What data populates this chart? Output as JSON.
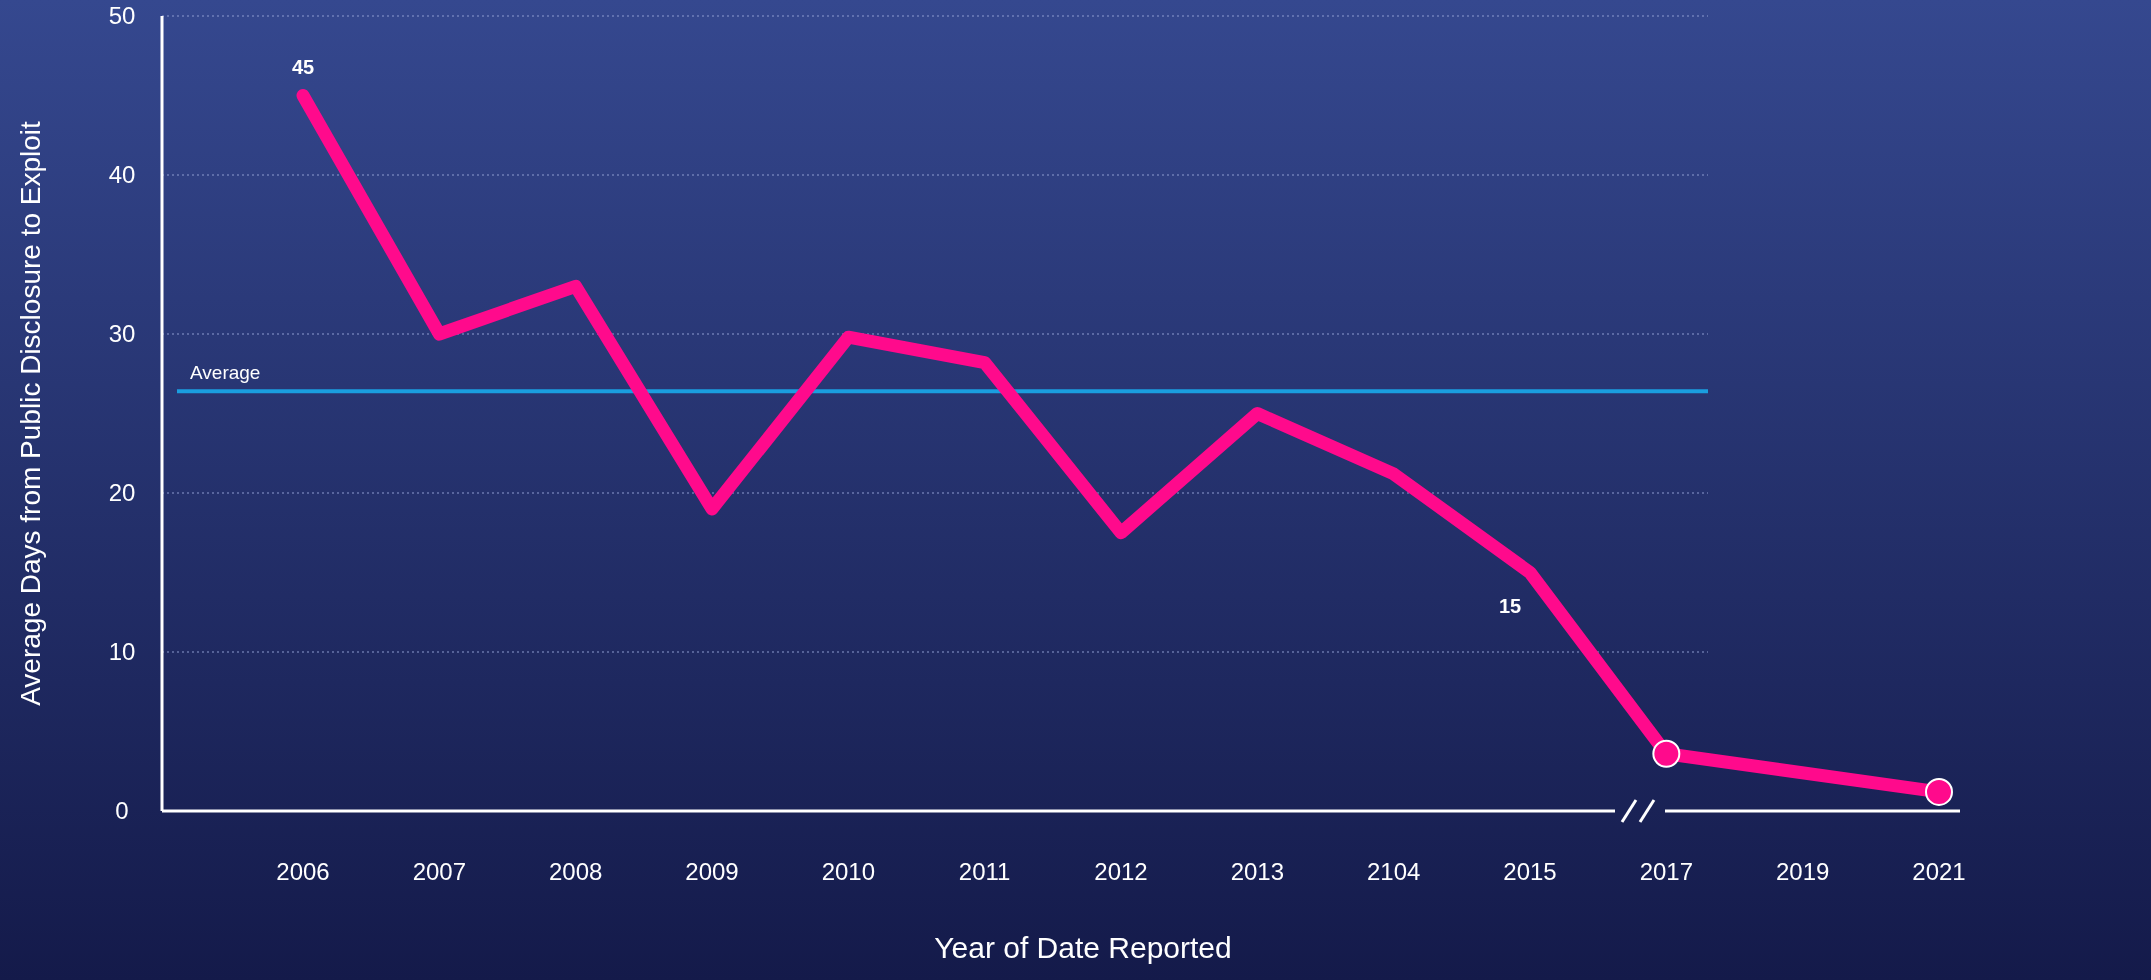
{
  "chart_data": {
    "type": "line",
    "xlabel": "Year of Date Reported",
    "ylabel": "Average Days from Public Disclosure to Exploit",
    "categories": [
      "2006",
      "2007",
      "2008",
      "2009",
      "2010",
      "2011",
      "2012",
      "2013",
      "2104",
      "2015",
      "2017",
      "2019",
      "2021"
    ],
    "series": [
      {
        "color": "#ff0a8c",
        "values": [
          45,
          30,
          33,
          19,
          29.8,
          28.2,
          17.5,
          25,
          21.2,
          15,
          3.6,
          null,
          1.2
        ],
        "value_labels": [
          "45",
          null,
          null,
          null,
          null,
          null,
          null,
          null,
          null,
          "15",
          null,
          null,
          null
        ],
        "marker": "none"
      },
      {
        "type": "scatter",
        "color": "#ff0a8c",
        "values": [
          null,
          null,
          null,
          null,
          null,
          null,
          null,
          null,
          null,
          null,
          3.6,
          null,
          1.2
        ],
        "marker": "circle"
      }
    ],
    "ylim": [
      0,
      50
    ],
    "yticks": [
      0,
      10,
      20,
      30,
      40,
      50
    ],
    "grid": "y",
    "line_style": "solid",
    "ref_lines": [
      {
        "axis": "y",
        "value": 26.4,
        "label": "Average",
        "color": "#1a9ee0"
      }
    ]
  }
}
